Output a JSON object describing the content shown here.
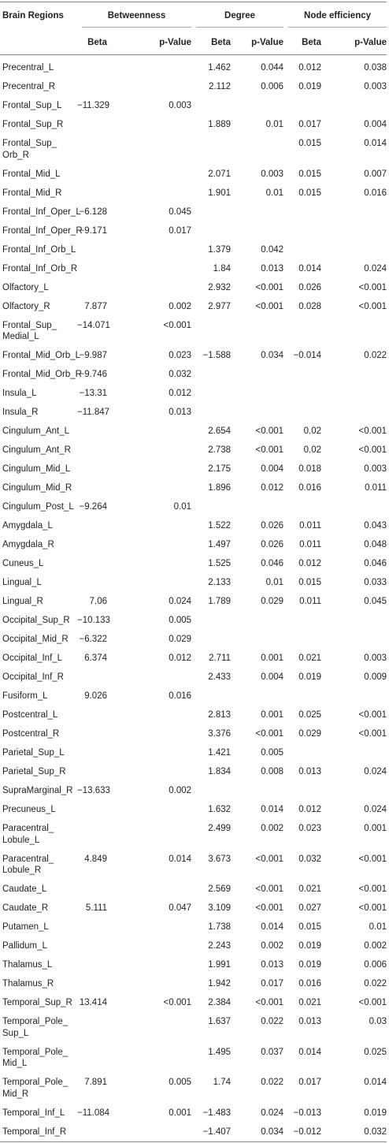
{
  "table": {
    "header": {
      "region": "Brain Regions",
      "groups": [
        "Betweenness",
        "Degree",
        "Node efficiency"
      ],
      "subheaders": [
        "Beta",
        "p-Value",
        "Beta",
        "p-Value",
        "Beta",
        "p-Value"
      ]
    },
    "rows": [
      [
        "Precentral_L",
        null,
        null,
        "1.462",
        "0.044",
        "0.012",
        "0.038"
      ],
      [
        "Precentral_R",
        null,
        null,
        "2.112",
        "0.006",
        "0.019",
        "0.003"
      ],
      [
        "Frontal_Sup_L",
        "−11.329",
        "0.003",
        null,
        null,
        null,
        null
      ],
      [
        "Frontal_Sup_R",
        null,
        null,
        "1.889",
        "0.01",
        "0.017",
        "0.004"
      ],
      [
        "Frontal_Sup_\nOrb_R",
        null,
        null,
        null,
        null,
        "0.015",
        "0.014"
      ],
      [
        "Frontal_Mid_L",
        null,
        null,
        "2.071",
        "0.003",
        "0.015",
        "0.007"
      ],
      [
        "Frontal_Mid_R",
        null,
        null,
        "1.901",
        "0.01",
        "0.015",
        "0.016"
      ],
      [
        "Frontal_Inf_Oper_L",
        "−6.128",
        "0.045",
        null,
        null,
        null,
        null
      ],
      [
        "Frontal_Inf_Oper_R",
        "−9.171",
        "0.017",
        null,
        null,
        null,
        null
      ],
      [
        "Frontal_Inf_Orb_L",
        null,
        null,
        "1.379",
        "0.042",
        null,
        null
      ],
      [
        "Frontal_Inf_Orb_R",
        null,
        null,
        "1.84",
        "0.013",
        "0.014",
        "0.024"
      ],
      [
        "Olfactory_L",
        null,
        null,
        "2.932",
        "<0.001",
        "0.026",
        "<0.001"
      ],
      [
        "Olfactory_R",
        "7.877",
        "0.002",
        "2.977",
        "<0.001",
        "0.028",
        "<0.001"
      ],
      [
        "Frontal_Sup_\nMedial_L",
        "−14.071",
        "<0.001",
        null,
        null,
        null,
        null
      ],
      [
        "Frontal_Mid_Orb_L",
        "−9.987",
        "0.023",
        "−1.588",
        "0.034",
        "−0.014",
        "0.022"
      ],
      [
        "Frontal_Mid_Orb_R",
        "−9.746",
        "0.032",
        null,
        null,
        null,
        null
      ],
      [
        "Insula_L",
        "−13.31",
        "0.012",
        null,
        null,
        null,
        null
      ],
      [
        "Insula_R",
        "−11.847",
        "0.013",
        null,
        null,
        null,
        null
      ],
      [
        "Cingulum_Ant_L",
        null,
        null,
        "2.654",
        "<0.001",
        "0.02",
        "<0.001"
      ],
      [
        "Cingulum_Ant_R",
        null,
        null,
        "2.738",
        "<0.001",
        "0.02",
        "<0.001"
      ],
      [
        "Cingulum_Mid_L",
        null,
        null,
        "2.175",
        "0.004",
        "0.018",
        "0.003"
      ],
      [
        "Cingulum_Mid_R",
        null,
        null,
        "1.896",
        "0.012",
        "0.016",
        "0.011"
      ],
      [
        "Cingulum_Post_L",
        "−9.264",
        "0.01",
        null,
        null,
        null,
        null
      ],
      [
        "Amygdala_L",
        null,
        null,
        "1.522",
        "0.026",
        "0.011",
        "0.043"
      ],
      [
        "Amygdala_R",
        null,
        null,
        "1.497",
        "0.026",
        "0.011",
        "0.048"
      ],
      [
        "Cuneus_L",
        null,
        null,
        "1.525",
        "0.046",
        "0.012",
        "0.046"
      ],
      [
        "Lingual_L",
        null,
        null,
        "2.133",
        "0.01",
        "0.015",
        "0.033"
      ],
      [
        "Lingual_R",
        "7.06",
        "0.024",
        "1.789",
        "0.029",
        "0.011",
        "0.045"
      ],
      [
        "Occipital_Sup_R",
        "−10.133",
        "0.005",
        null,
        null,
        null,
        null
      ],
      [
        "Occipital_Mid_R",
        "−6.322",
        "0.029",
        null,
        null,
        null,
        null
      ],
      [
        "Occipital_Inf_L",
        "6.374",
        "0.012",
        "2.711",
        "0.001",
        "0.021",
        "0.003"
      ],
      [
        "Occipital_Inf_R",
        null,
        null,
        "2.433",
        "0.004",
        "0.019",
        "0.009"
      ],
      [
        "Fusiform_L",
        "9.026",
        "0.016",
        null,
        null,
        null,
        null
      ],
      [
        "Postcentral_L",
        null,
        null,
        "2.813",
        "0.001",
        "0.025",
        "<0.001"
      ],
      [
        "Postcentral_R",
        null,
        null,
        "3.376",
        "<0.001",
        "0.029",
        "<0.001"
      ],
      [
        "Parietal_Sup_L",
        null,
        null,
        "1.421",
        "0.005",
        null,
        null
      ],
      [
        "Parietal_Sup_R",
        null,
        null,
        "1.834",
        "0.008",
        "0.013",
        "0.024"
      ],
      [
        "SupraMarginal_R",
        "−13.633",
        "0.002",
        null,
        null,
        null,
        null
      ],
      [
        "Precuneus_L",
        null,
        null,
        "1.632",
        "0.014",
        "0.012",
        "0.024"
      ],
      [
        "Paracentral_\nLobule_L",
        null,
        null,
        "2.499",
        "0.002",
        "0.023",
        "0.001"
      ],
      [
        "Paracentral_\nLobule_R",
        "4.849",
        "0.014",
        "3.673",
        "<0.001",
        "0.032",
        "<0.001"
      ],
      [
        "Caudate_L",
        null,
        null,
        "2.569",
        "<0.001",
        "0.021",
        "<0.001"
      ],
      [
        "Caudate_R",
        "5.111",
        "0.047",
        "3.109",
        "<0.001",
        "0.027",
        "<0.001"
      ],
      [
        "Putamen_L",
        null,
        null,
        "1.738",
        "0.014",
        "0.015",
        "0.01"
      ],
      [
        "Pallidum_L",
        null,
        null,
        "2.243",
        "0.002",
        "0.019",
        "0.002"
      ],
      [
        "Thalamus_L",
        null,
        null,
        "1.991",
        "0.013",
        "0.019",
        "0.006"
      ],
      [
        "Thalamus_R",
        null,
        null,
        "1.942",
        "0.017",
        "0.016",
        "0.022"
      ],
      [
        "Temporal_Sup_R",
        "13.414",
        "<0.001",
        "2.384",
        "<0.001",
        "0.021",
        "<0.001"
      ],
      [
        "Temporal_Pole_\nSup_L",
        null,
        null,
        "1.637",
        "0.022",
        "0.013",
        "0.03"
      ],
      [
        "Temporal_Pole_\nMid_L",
        null,
        null,
        "1.495",
        "0.037",
        "0.014",
        "0.025"
      ],
      [
        "Temporal_Pole_\nMid_R",
        "7.891",
        "0.005",
        "1.74",
        "0.022",
        "0.017",
        "0.014"
      ],
      [
        "Temporal_Inf_L",
        "−11.084",
        "0.001",
        "−1.483",
        "0.024",
        "−0.013",
        "0.019"
      ],
      [
        "Temporal_Inf_R",
        null,
        null,
        "−1.407",
        "0.034",
        "−0.012",
        "0.032"
      ]
    ]
  }
}
